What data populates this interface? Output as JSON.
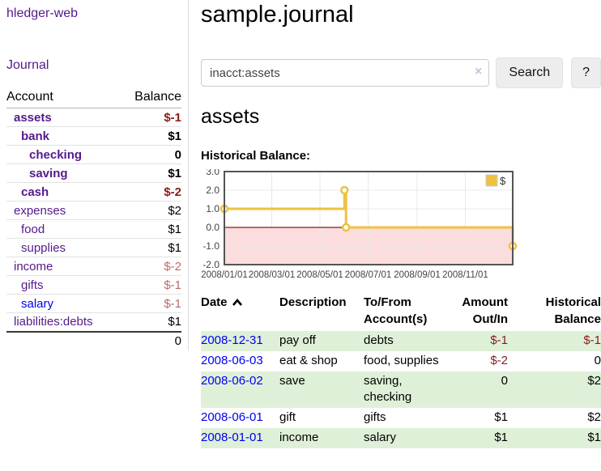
{
  "app": {
    "brand": "hledger-web",
    "nav_journal": "Journal"
  },
  "sidebar": {
    "accounts_header": {
      "account": "Account",
      "balance": "Balance"
    },
    "accounts": [
      {
        "name": "assets",
        "indent": 1,
        "bold": true,
        "link_color": "purple",
        "balance": "$-1",
        "balance_style": "neg-strong"
      },
      {
        "name": "bank",
        "indent": 2,
        "bold": true,
        "link_color": "purple",
        "balance": "$1",
        "balance_style": "plain"
      },
      {
        "name": "checking",
        "indent": 3,
        "bold": true,
        "link_color": "purple",
        "balance": "0",
        "balance_style": "plain"
      },
      {
        "name": "saving",
        "indent": 3,
        "bold": true,
        "link_color": "purple",
        "balance": "$1",
        "balance_style": "plain"
      },
      {
        "name": "cash",
        "indent": 2,
        "bold": true,
        "link_color": "purple",
        "balance": "$-2",
        "balance_style": "neg-strong"
      },
      {
        "name": "expenses",
        "indent": 1,
        "bold": false,
        "link_color": "purple",
        "balance": "$2",
        "balance_style": "plain"
      },
      {
        "name": "food",
        "indent": 2,
        "bold": false,
        "link_color": "purple",
        "balance": "$1",
        "balance_style": "plain"
      },
      {
        "name": "supplies",
        "indent": 2,
        "bold": false,
        "link_color": "purple",
        "balance": "$1",
        "balance_style": "plain"
      },
      {
        "name": "income",
        "indent": 1,
        "bold": false,
        "link_color": "purple",
        "balance": "$-2",
        "balance_style": "neg-muted"
      },
      {
        "name": "gifts",
        "indent": 2,
        "bold": false,
        "link_color": "purple",
        "balance": "$-1",
        "balance_style": "neg-muted"
      },
      {
        "name": "salary",
        "indent": 2,
        "bold": false,
        "link_color": "blue",
        "balance": "$-1",
        "balance_style": "neg-muted"
      },
      {
        "name": "liabilities:debts",
        "indent": 1,
        "bold": false,
        "link_color": "purple",
        "balance": "$1",
        "balance_style": "plain"
      }
    ],
    "total": "0"
  },
  "header": {
    "title": "sample.journal"
  },
  "search": {
    "value": "inacct:assets",
    "clear_icon": "×",
    "button": "Search",
    "help_button": "?"
  },
  "account_page": {
    "heading": "assets",
    "chart_label": "Historical Balance:"
  },
  "chart_data": {
    "type": "line",
    "title": "Historical Balance:",
    "step": true,
    "series": [
      {
        "name": "$",
        "color": "#EDC240",
        "points": [
          [
            "2008/01/01",
            1
          ],
          [
            "2008/06/01",
            2
          ],
          [
            "2008/06/03",
            0
          ],
          [
            "2008/12/31",
            -1
          ]
        ]
      }
    ],
    "x_range": [
      "2008/01/01",
      "2008/12/31"
    ],
    "ylim": [
      -2,
      3
    ],
    "x_ticks": [
      "2008/01/01",
      "2008/03/01",
      "2008/05/01",
      "2008/07/01",
      "2008/09/01",
      "2008/11/01"
    ],
    "y_ticks": [
      3.0,
      2.0,
      1.0,
      0.0,
      -1.0,
      -2.0
    ],
    "grid": true,
    "legend_position": "top-right",
    "colors": {
      "grid_line": "#e8e8e8",
      "plot_border": "#545454",
      "negative_region": "#fbdddd",
      "zero_line": "#8b1a1a",
      "tick_label": "#444444",
      "marker_fill": "#ffffff"
    }
  },
  "register": {
    "columns": [
      "Date",
      "Description",
      "To/From Account(s)",
      "Amount Out/In",
      "Historical Balance"
    ],
    "sort_icon": "chevron-up",
    "rows": [
      {
        "date": "2008-12-31",
        "description": "pay off",
        "accounts": "debts",
        "amount": "$-1",
        "amount_neg": true,
        "balance": "$-1",
        "balance_neg": true
      },
      {
        "date": "2008-06-03",
        "description": "eat & shop",
        "accounts": "food, supplies",
        "amount": "$-2",
        "amount_neg": true,
        "balance": "0",
        "balance_neg": false
      },
      {
        "date": "2008-06-02",
        "description": "save",
        "accounts": "saving, checking",
        "amount": "0",
        "amount_neg": false,
        "balance": "$2",
        "balance_neg": false
      },
      {
        "date": "2008-06-01",
        "description": "gift",
        "accounts": "gifts",
        "amount": "$1",
        "amount_neg": false,
        "balance": "$2",
        "balance_neg": false
      },
      {
        "date": "2008-01-01",
        "description": "income",
        "accounts": "salary",
        "amount": "$1",
        "amount_neg": false,
        "balance": "$1",
        "balance_neg": false
      }
    ]
  }
}
